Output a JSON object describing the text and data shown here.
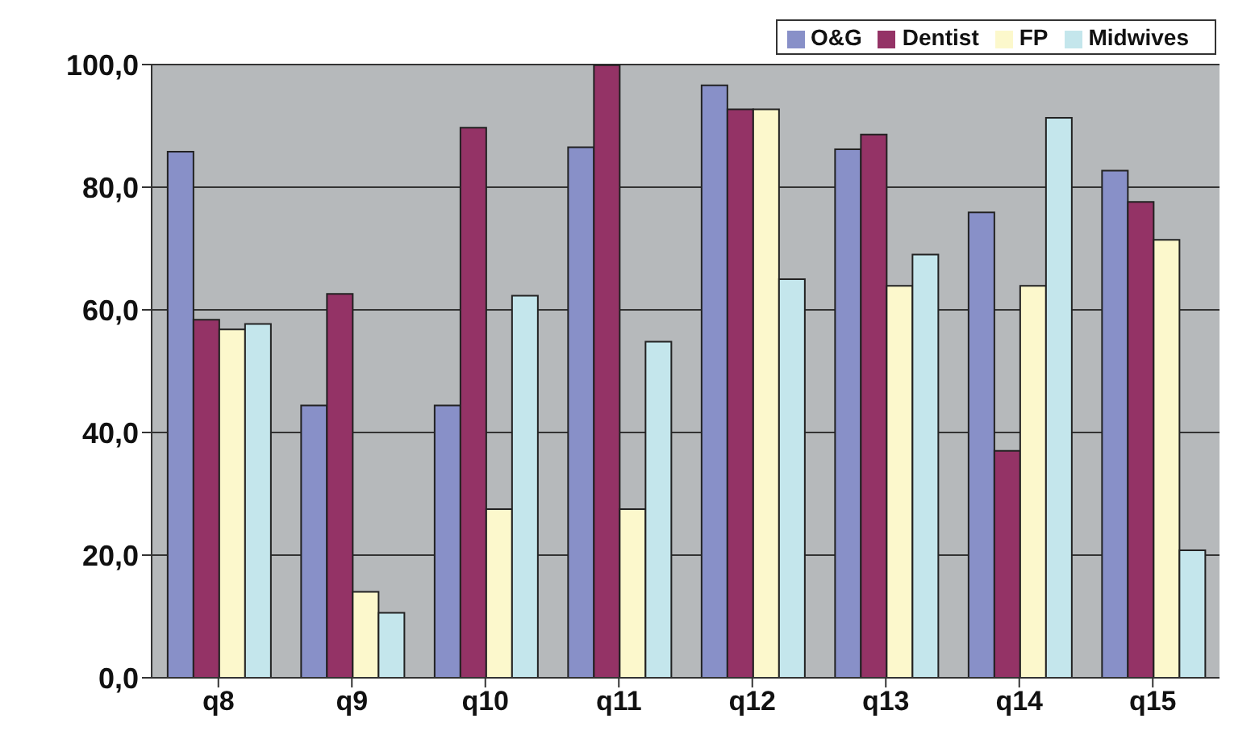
{
  "chart_data": {
    "type": "bar",
    "categories": [
      "q8",
      "q9",
      "q10",
      "q11",
      "q12",
      "q13",
      "q14",
      "q15"
    ],
    "series": [
      {
        "name": "O&G",
        "color": "#8890c8",
        "values": [
          85.8,
          44.4,
          44.4,
          86.5,
          96.6,
          86.2,
          75.9,
          82.7
        ]
      },
      {
        "name": "Dentist",
        "color": "#943366",
        "values": [
          58.4,
          62.6,
          89.7,
          99.9,
          92.7,
          88.6,
          37.0,
          77.6
        ]
      },
      {
        "name": "FP",
        "color": "#fcf8cc",
        "values": [
          56.8,
          14.0,
          27.5,
          27.5,
          92.7,
          63.9,
          63.9,
          71.4
        ]
      },
      {
        "name": "Midwives",
        "color": "#c4e6ec",
        "values": [
          57.7,
          10.6,
          62.3,
          54.8,
          65.0,
          69.0,
          91.3,
          20.8
        ]
      }
    ],
    "ylim": [
      0,
      100
    ],
    "yticks": [
      {
        "value": 0,
        "label": "0,0"
      },
      {
        "value": 20,
        "label": "20,0"
      },
      {
        "value": 40,
        "label": "40,0"
      },
      {
        "value": 60,
        "label": "60,0"
      },
      {
        "value": 80,
        "label": "80,0"
      },
      {
        "value": 100,
        "label": "100,0"
      }
    ],
    "grid": "y",
    "legend": "top right"
  }
}
